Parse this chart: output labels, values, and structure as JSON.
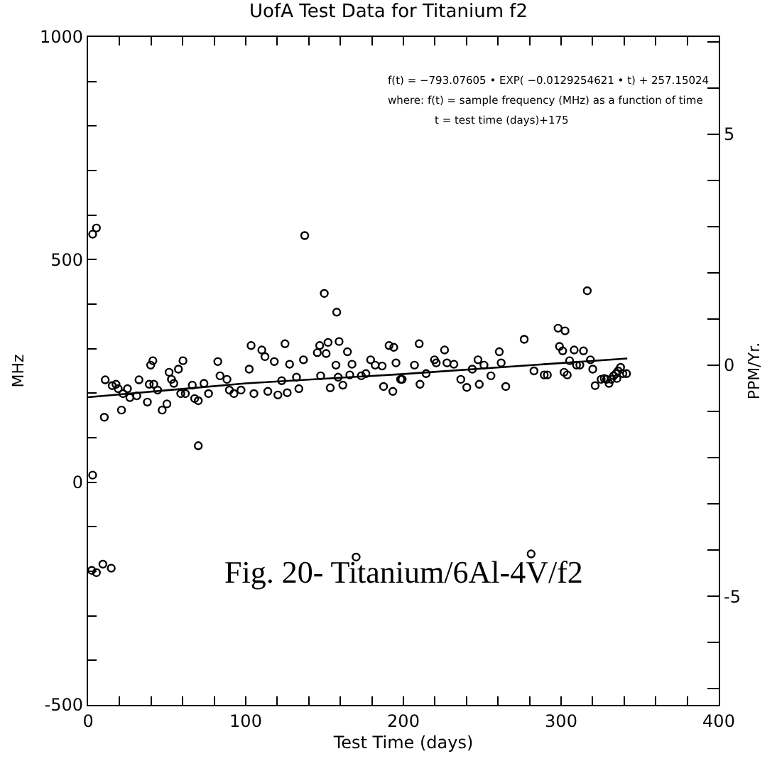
{
  "chart_data": {
    "type": "scatter",
    "title": "UofA Test Data for Titanium f2",
    "xlabel": "Test Time (days)",
    "ylabel": "MHz",
    "y2label": "PPM/Yr.",
    "annotations": [
      "f(t) = −793.07605 • EXP( −0.0129254621 • t) + 257.15024",
      "where: f(t) = sample frequency (MHz) as a function of time",
      "t = test time (days)+175",
      "Fig. 20- Titanium/6Al-4V/f2"
    ],
    "xlim": [
      0,
      400
    ],
    "xticks": [
      0,
      {
        "value": 20,
        "label": null
      },
      {
        "value": 40,
        "label": null
      },
      {
        "value": 60,
        "label": null
      },
      {
        "value": 80,
        "label": null
      },
      100,
      {
        "value": 120,
        "label": null
      },
      {
        "value": 140,
        "label": null
      },
      {
        "value": 160,
        "label": null
      },
      {
        "value": 180,
        "label": null
      },
      200,
      {
        "value": 220,
        "label": null
      },
      {
        "value": 240,
        "label": null
      },
      {
        "value": 260,
        "label": null
      },
      {
        "value": 280,
        "label": null
      },
      300,
      {
        "value": 320,
        "label": null
      },
      {
        "value": 340,
        "label": null
      },
      {
        "value": 360,
        "label": null
      },
      {
        "value": 380,
        "label": null
      },
      400
    ],
    "ylim": [
      -500,
      1000
    ],
    "yticks": [
      -500,
      {
        "value": -400,
        "label": null
      },
      {
        "value": -300,
        "label": null
      },
      {
        "value": -200,
        "label": null
      },
      {
        "value": -100,
        "label": null
      },
      0,
      {
        "value": 100,
        "label": null
      },
      {
        "value": 200,
        "label": null
      },
      {
        "value": 300,
        "label": null
      },
      {
        "value": 400,
        "label": null
      },
      500,
      {
        "value": 600,
        "label": null
      },
      {
        "value": 700,
        "label": null
      },
      {
        "value": 800,
        "label": null
      },
      {
        "value": 900,
        "label": null
      },
      1000
    ],
    "y2lim": [
      -7.35,
      7.1
    ],
    "y2ticks": [
      {
        "value": -7,
        "label": null
      },
      {
        "value": -6,
        "label": null
      },
      -5,
      {
        "value": -4,
        "label": null
      },
      {
        "value": -3,
        "label": null
      },
      {
        "value": -2,
        "label": null
      },
      {
        "value": -1,
        "label": null
      },
      0,
      {
        "value": 1,
        "label": null
      },
      {
        "value": 2,
        "label": null
      },
      {
        "value": 3,
        "label": null
      },
      {
        "value": 4,
        "label": null
      },
      5,
      {
        "value": 6,
        "label": null
      },
      {
        "value": 7,
        "label": null
      }
    ],
    "marker": "circle",
    "series": [
      {
        "color": "#000000",
        "x": [
          2.9,
          5.3,
          137.4,
          149.8,
          157.7,
          69.9,
          2.9,
          2.3,
          5.3,
          9.4,
          14.7,
          170,
          281,
          10.3,
          10.9,
          15.3,
          17.7,
          19.1,
          21.2,
          22.1,
          25,
          26.5,
          32.3,
          30.9,
          37.6,
          39.7,
          41.1,
          38.8,
          41.7,
          44.1,
          47,
          50,
          51.4,
          52.9,
          54.4,
          57.3,
          60.2,
          58.8,
          61.7,
          66.1,
          67.6,
          69.9,
          73.5,
          76.4,
          82.3,
          83.7,
          88.1,
          89.6,
          92.5,
          97,
          102.2,
          103.4,
          105.2,
          110.2,
          112.2,
          114,
          118.1,
          120.4,
          122.8,
          124.9,
          126.3,
          127.8,
          132.2,
          133.7,
          136.6,
          145.4,
          146.9,
          147.5,
          151,
          152.2,
          153.6,
          157.2,
          159.2,
          158.6,
          161.6,
          164.5,
          166,
          167.4,
          173.3,
          176.2,
          179.2,
          182.1,
          186.5,
          187.4,
          190.9,
          193.9,
          193.3,
          195.3,
          199.2,
          198.2,
          207,
          210,
          210.5,
          214.4,
          219.7,
          220.8,
          226.1,
          227.6,
          232,
          236.4,
          240.2,
          243.7,
          248.1,
          247.3,
          251.1,
          255.5,
          260.8,
          262,
          264.9,
          276.6,
          282.8,
          289.3,
          291.3,
          298.1,
          302.5,
          299,
          301,
          301.9,
          303.9,
          305.4,
          308.3,
          309.8,
          311.9,
          314.2,
          316.6,
          318.6,
          320.1,
          321.6,
          325.4,
          327.4,
          328.9,
          330.4,
          331.8,
          333.3,
          334.8,
          336.2,
          337.7,
          335.4,
          339.2,
          341.5
        ],
        "values": [
          557,
          571,
          554,
          424,
          382,
          82,
          16,
          -198,
          -203,
          -184,
          -193,
          -168,
          -161,
          146,
          230,
          217,
          220,
          210,
          162,
          199,
          210,
          190,
          230,
          194,
          180,
          263,
          273,
          220,
          220,
          207,
          162,
          176,
          247,
          231,
          222,
          254,
          273,
          199,
          199,
          218,
          188,
          183,
          222,
          199,
          271,
          239,
          231,
          207,
          199,
          207,
          254,
          307,
          199,
          297,
          282,
          204,
          271,
          196,
          228,
          311,
          201,
          265,
          236,
          210,
          275,
          291,
          307,
          239,
          289,
          314,
          212,
          263,
          316,
          236,
          218,
          293,
          241,
          265,
          239,
          244,
          275,
          263,
          261,
          215,
          307,
          303,
          204,
          268,
          231,
          231,
          263,
          311,
          220,
          244,
          275,
          268,
          297,
          268,
          265,
          231,
          213,
          254,
          220,
          275,
          263,
          239,
          293,
          268,
          215,
          321,
          250,
          241,
          241,
          346,
          340,
          305,
          295,
          247,
          241,
          273,
          297,
          263,
          263,
          295,
          430,
          275,
          254,
          217,
          231,
          233,
          231,
          222,
          231,
          239,
          244,
          250,
          258,
          233,
          244,
          244
        ]
      },
      {
        "type": "line",
        "color": "#000000",
        "line_style": "solid",
        "marker": "none",
        "x": [
          0,
          100,
          200,
          342
        ],
        "values": [
          191,
          222,
          243,
          278
        ]
      }
    ]
  }
}
